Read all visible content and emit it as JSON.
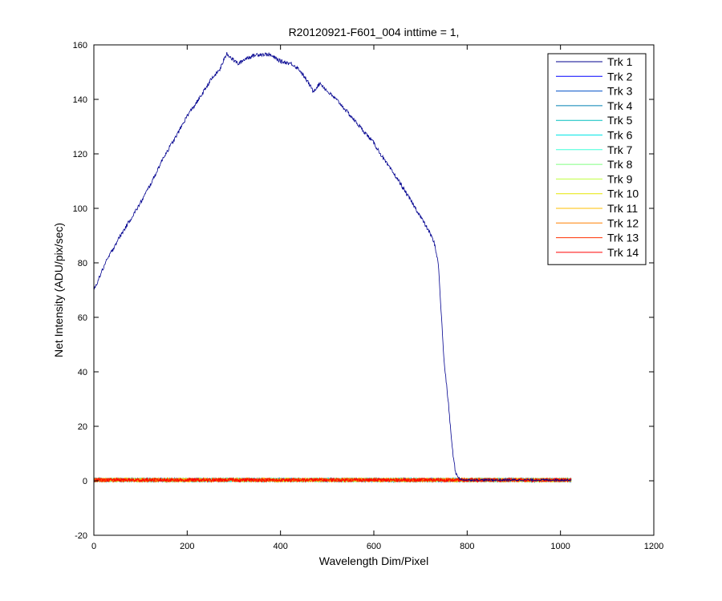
{
  "chart_data": {
    "type": "line",
    "title": "R20120921-F601_004 inttime = 1,",
    "xlabel": "Wavelength Dim/Pixel",
    "ylabel": "Net Intensity (ADU/pix/sec)",
    "xlim": [
      0,
      1200
    ],
    "ylim": [
      -20,
      160
    ],
    "xticks": [
      0,
      200,
      400,
      600,
      800,
      1000,
      1200
    ],
    "yticks": [
      -20,
      0,
      20,
      40,
      60,
      80,
      100,
      120,
      140,
      160
    ],
    "grid": false,
    "legend_position": "top-right",
    "x_range": [
      0,
      1023
    ],
    "series": [
      {
        "name": "Trk 1",
        "color": "#00008f",
        "points": [
          [
            0,
            70
          ],
          [
            10,
            74
          ],
          [
            25,
            80
          ],
          [
            50,
            88
          ],
          [
            75,
            95
          ],
          [
            100,
            102
          ],
          [
            125,
            110
          ],
          [
            150,
            119
          ],
          [
            175,
            126
          ],
          [
            200,
            134
          ],
          [
            225,
            140
          ],
          [
            250,
            147
          ],
          [
            270,
            151
          ],
          [
            280,
            155
          ],
          [
            285,
            157
          ],
          [
            295,
            155
          ],
          [
            310,
            153
          ],
          [
            325,
            155
          ],
          [
            350,
            156.5
          ],
          [
            375,
            156.5
          ],
          [
            400,
            154
          ],
          [
            425,
            153
          ],
          [
            440,
            151
          ],
          [
            460,
            146
          ],
          [
            470,
            143
          ],
          [
            485,
            146
          ],
          [
            500,
            143
          ],
          [
            525,
            139
          ],
          [
            550,
            134
          ],
          [
            575,
            129
          ],
          [
            600,
            124
          ],
          [
            625,
            117
          ],
          [
            650,
            111
          ],
          [
            675,
            104
          ],
          [
            700,
            97
          ],
          [
            720,
            91
          ],
          [
            730,
            87
          ],
          [
            738,
            80
          ],
          [
            745,
            60
          ],
          [
            750,
            45
          ],
          [
            760,
            28
          ],
          [
            768,
            12
          ],
          [
            775,
            3
          ],
          [
            785,
            0.5
          ],
          [
            800,
            0.3
          ],
          [
            1023,
            0.3
          ]
        ]
      },
      {
        "name": "Trk 2",
        "color": "#0000ff",
        "constant": 0.3
      },
      {
        "name": "Trk 3",
        "color": "#0050c8",
        "constant": 0.3
      },
      {
        "name": "Trk 4",
        "color": "#0080b4",
        "constant": 0.3
      },
      {
        "name": "Trk 5",
        "color": "#00bfbf",
        "constant": 0.3
      },
      {
        "name": "Trk 6",
        "color": "#00e6e6",
        "constant": 0.3
      },
      {
        "name": "Trk 7",
        "color": "#40ffd9",
        "constant": 0.3
      },
      {
        "name": "Trk 8",
        "color": "#80ff80",
        "constant": 0.3
      },
      {
        "name": "Trk 9",
        "color": "#bfff40",
        "constant": 0.3
      },
      {
        "name": "Trk 10",
        "color": "#e6e600",
        "constant": 0.3
      },
      {
        "name": "Trk 11",
        "color": "#ffbf00",
        "constant": 0.3
      },
      {
        "name": "Trk 12",
        "color": "#ff8000",
        "constant": 0.3
      },
      {
        "name": "Trk 13",
        "color": "#ff3000",
        "constant": 0.3
      },
      {
        "name": "Trk 14",
        "color": "#ff0000",
        "constant": 0.3
      }
    ]
  }
}
